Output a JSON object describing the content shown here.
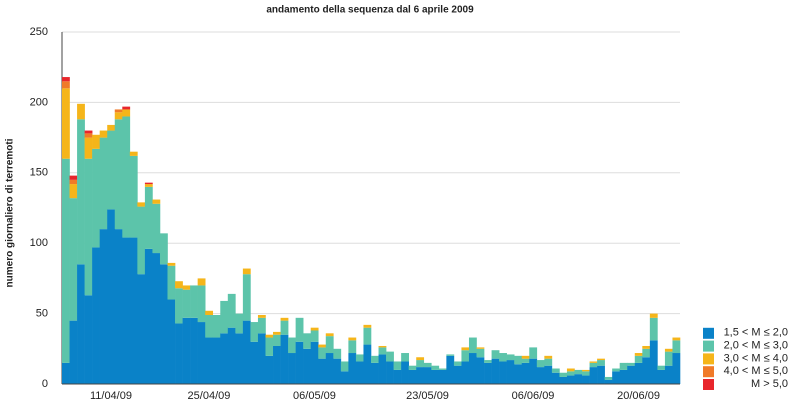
{
  "chart_data": {
    "type": "stacked_bar",
    "title": "andamento della sequenza dal 6 aprile 2009",
    "y_label": "numero giornaliero di terremoti",
    "categories": [
      null,
      null,
      null,
      null,
      null,
      null,
      "11/04/09",
      null,
      null,
      null,
      null,
      null,
      null,
      null,
      null,
      null,
      null,
      null,
      null,
      "25/04/09",
      null,
      null,
      null,
      null,
      null,
      null,
      null,
      null,
      null,
      null,
      null,
      null,
      null,
      "06/05/09",
      null,
      null,
      null,
      null,
      null,
      null,
      null,
      null,
      null,
      null,
      null,
      null,
      null,
      null,
      "23/05/09",
      null,
      null,
      null,
      null,
      null,
      null,
      null,
      null,
      null,
      null,
      null,
      null,
      null,
      "06/06/09",
      null,
      null,
      null,
      null,
      null,
      null,
      null,
      null,
      null,
      null,
      null,
      null,
      null,
      "20/06/09",
      null,
      null,
      null,
      null,
      null
    ],
    "series": [
      {
        "name": "1,5 < M ≤ 2,0",
        "color": "#0a82c8",
        "values": [
          15,
          45,
          85,
          63,
          97,
          110,
          124,
          110,
          104,
          104,
          78,
          96,
          93,
          85,
          60,
          43,
          47,
          47,
          44,
          33,
          33,
          36,
          40,
          36,
          45,
          30,
          36,
          20,
          27,
          35,
          22,
          30,
          25,
          30,
          18,
          22,
          18,
          9,
          22,
          16,
          28,
          15,
          21,
          16,
          10,
          16,
          10,
          12,
          12,
          10,
          10,
          20,
          13,
          16,
          22,
          19,
          15,
          18,
          16,
          17,
          14,
          15,
          18,
          12,
          13,
          8,
          5,
          6,
          7,
          6,
          12,
          13,
          3,
          9,
          10,
          13,
          15,
          19,
          31,
          10,
          13,
          22
        ]
      },
      {
        "name": "2,0 < M ≤ 3,0",
        "color": "#5cc4aa",
        "values": [
          145,
          87,
          103,
          97,
          70,
          65,
          56,
          78,
          86,
          58,
          48,
          44,
          35,
          22,
          24,
          25,
          20,
          23,
          26,
          16,
          16,
          23,
          24,
          14,
          33,
          14,
          11,
          13,
          8,
          10,
          11,
          17,
          11,
          8,
          8,
          12,
          7,
          7,
          9,
          5,
          12,
          5,
          5,
          7,
          6,
          6,
          3,
          5,
          3,
          3,
          1,
          1,
          3,
          8,
          11,
          6,
          2,
          6,
          6,
          4,
          6,
          3,
          8,
          5,
          5,
          3,
          3,
          3,
          3,
          3,
          3,
          4,
          2,
          2,
          5,
          2,
          5,
          6,
          16,
          3,
          10,
          9
        ]
      },
      {
        "name": "3,0 < M ≤ 4,0",
        "color": "#f5b51a",
        "values": [
          50,
          10,
          11,
          15,
          10,
          5,
          4,
          5,
          5,
          3,
          3,
          2,
          3,
          0,
          2,
          5,
          3,
          0,
          5,
          3,
          0,
          0,
          0,
          0,
          4,
          0,
          2,
          2,
          2,
          2,
          0,
          0,
          0,
          2,
          2,
          2,
          0,
          0,
          2,
          0,
          2,
          0,
          1,
          0,
          0,
          0,
          0,
          2,
          0,
          0,
          0,
          0,
          0,
          2,
          0,
          1,
          0,
          0,
          0,
          0,
          0,
          2,
          0,
          0,
          2,
          0,
          0,
          2,
          0,
          1,
          1,
          1,
          0,
          0,
          0,
          0,
          2,
          2,
          3,
          0,
          2,
          2
        ]
      },
      {
        "name": "4,0 < M ≤ 5,0",
        "color": "#f07a28",
        "values": [
          5,
          3,
          0,
          3,
          0,
          0,
          0,
          2,
          0,
          0,
          0,
          0,
          0,
          0,
          0,
          0,
          0,
          0,
          0,
          0,
          0,
          0,
          0,
          0,
          0,
          0,
          0,
          0,
          0,
          0,
          0,
          0,
          0,
          0,
          0,
          0,
          0,
          0,
          0,
          0,
          0,
          0,
          0,
          0,
          0,
          0,
          0,
          0,
          0,
          0,
          0,
          0,
          0,
          0,
          0,
          0,
          0,
          0,
          0,
          0,
          0,
          0,
          0,
          0,
          0,
          0,
          0,
          0,
          0,
          0,
          0,
          0,
          0,
          0,
          0,
          0,
          0,
          0,
          0,
          0,
          0,
          0
        ]
      },
      {
        "name": "M > 5,0",
        "color": "#e8262c",
        "values": [
          3,
          3,
          0,
          2,
          0,
          0,
          0,
          0,
          2,
          0,
          0,
          1,
          0,
          0,
          0,
          0,
          0,
          0,
          0,
          0,
          0,
          0,
          0,
          0,
          0,
          0,
          0,
          0,
          0,
          0,
          0,
          0,
          0,
          0,
          0,
          0,
          0,
          0,
          0,
          0,
          0,
          0,
          0,
          0,
          0,
          0,
          0,
          0,
          0,
          0,
          0,
          0,
          0,
          0,
          0,
          0,
          0,
          0,
          0,
          0,
          0,
          0,
          0,
          0,
          0,
          0,
          0,
          0,
          0,
          0,
          0,
          0,
          0,
          0,
          0,
          0,
          0,
          0,
          0,
          0,
          0,
          0
        ]
      }
    ],
    "ylim": [
      0,
      250
    ],
    "yticks": [
      0,
      50,
      100,
      150,
      200,
      250
    ],
    "grid": true,
    "legend": "lower right"
  }
}
